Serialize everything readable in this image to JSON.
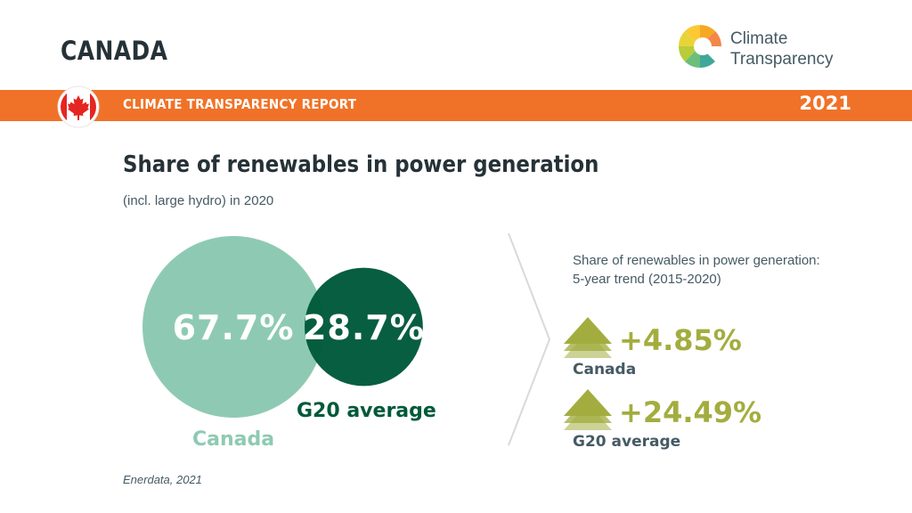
{
  "header": {
    "country": "CANADA",
    "logo": {
      "line1": "Climate",
      "line2": "Transparency",
      "icon": "circular-petal-logo"
    }
  },
  "banner": {
    "label": "CLIMATE TRANSPARENCY REPORT",
    "year": "2021",
    "flag_icon": "canada-maple-leaf-flag"
  },
  "colors": {
    "banner": "#f07228",
    "canada": "#8ecab3",
    "g20": "#00593a",
    "trend": "#a3ad3f",
    "text_dark": "#263238",
    "text_body": "#455a64"
  },
  "chart_data": [
    {
      "type": "bubble",
      "title": "Share of renewables in power generation",
      "subtitle": "(incl. large hydro) in 2020",
      "unit": "%",
      "series": [
        {
          "name": "Canada",
          "value": 67.7,
          "label": "67.7%"
        },
        {
          "name": "G20 average",
          "value": 28.7,
          "label": "28.7%"
        }
      ]
    },
    {
      "type": "table",
      "title_line1": "Share of renewables in power generation:",
      "title_line2": "5-year trend (2015-2020)",
      "direction_icon": "stacked-up-arrow-icon",
      "rows": [
        {
          "name": "Canada",
          "change": 4.85,
          "label": "+4.85%"
        },
        {
          "name": "G20 average",
          "change": 24.49,
          "label": "+24.49%"
        }
      ]
    }
  ],
  "source": "Enerdata, 2021"
}
